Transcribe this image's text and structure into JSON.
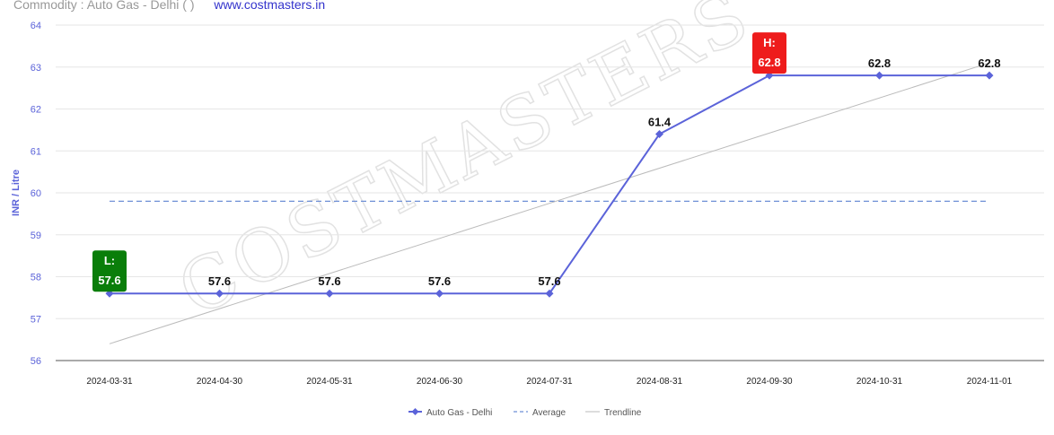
{
  "header": {
    "title": "Commodity : Auto Gas - Delhi ( )",
    "url": "www.costmasters.in"
  },
  "watermark": "COSTMASTERS",
  "colors": {
    "series": "#5b63d9",
    "average": "#6e8fd6",
    "trendline": "#bbbbbb",
    "low_badge": "#0a7e0a",
    "high_badge": "#ee1c1c",
    "axis_label": "#5b63d9"
  },
  "chart_data": {
    "type": "line",
    "ylabel": "INR / Litre",
    "ylim": [
      56,
      64
    ],
    "yticks": [
      56,
      57,
      58,
      59,
      60,
      61,
      62,
      63,
      64
    ],
    "categories": [
      "2024-03-31",
      "2024-04-30",
      "2024-05-31",
      "2024-06-30",
      "2024-07-31",
      "2024-08-31",
      "2024-09-30",
      "2024-10-31",
      "2024-11-01"
    ],
    "series": [
      {
        "name": "Auto Gas - Delhi",
        "values": [
          57.6,
          57.6,
          57.6,
          57.6,
          57.6,
          61.4,
          62.8,
          62.8,
          62.8
        ]
      }
    ],
    "data_labels": [
      "57.6",
      "57.6",
      "57.6",
      "57.6",
      "57.6",
      "61.4",
      "62.8",
      "62.8",
      "62.8"
    ],
    "average": {
      "name": "Average",
      "value": 59.8
    },
    "trendline": {
      "name": "Trendline",
      "start": 56.4,
      "end": 63.1
    },
    "low": {
      "label": "L:",
      "value": "57.6",
      "index": 0
    },
    "high": {
      "label": "H:",
      "value": "62.8",
      "index": 6
    },
    "legend": [
      "Auto Gas - Delhi",
      "Average",
      "Trendline"
    ],
    "legend_position": "bottom-center",
    "grid": true
  }
}
